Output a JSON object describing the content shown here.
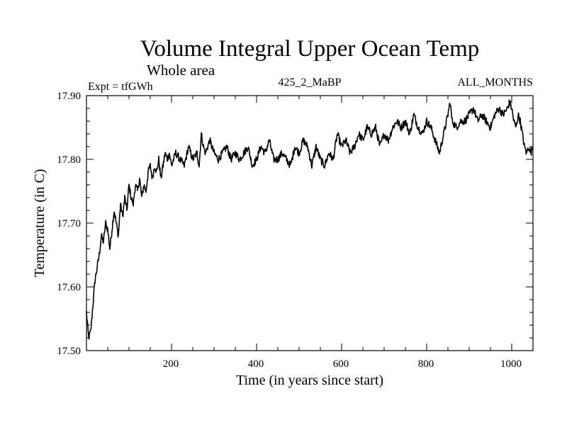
{
  "chart_data": {
    "type": "line",
    "title": "Volume Integral Upper Ocean Temp",
    "subtitle": "Whole area",
    "expt_label": "Expt = tfGWh",
    "run_label": "425_2_MaBP",
    "months_label": "ALL_MONTHS",
    "xlabel": "Time (in years since start)",
    "ylabel": "Temperature (in C)",
    "xlim": [
      0,
      1050
    ],
    "ylim": [
      17.5,
      17.9
    ],
    "xticks": [
      200,
      400,
      600,
      800,
      1000
    ],
    "xtick_labels": [
      "200",
      "400",
      "600",
      "800",
      "1000"
    ],
    "yticks": [
      17.5,
      17.6,
      17.7,
      17.8,
      17.9
    ],
    "ytick_labels": [
      "17.50",
      "17.60",
      "17.70",
      "17.80",
      "17.90"
    ],
    "colors": {
      "line": "#000000",
      "axis": "#000000",
      "background": "#ffffff"
    },
    "series": [
      {
        "name": "Volume Integral Upper Ocean Temp",
        "x": [
          0,
          5,
          10,
          15,
          20,
          25,
          30,
          35,
          40,
          45,
          50,
          55,
          60,
          65,
          70,
          75,
          80,
          85,
          90,
          95,
          100,
          105,
          110,
          115,
          120,
          125,
          130,
          135,
          140,
          145,
          150,
          155,
          160,
          165,
          170,
          175,
          180,
          185,
          190,
          195,
          200,
          210,
          220,
          230,
          240,
          250,
          260,
          265,
          270,
          275,
          280,
          290,
          300,
          310,
          320,
          330,
          340,
          350,
          360,
          370,
          380,
          390,
          400,
          410,
          420,
          430,
          440,
          450,
          460,
          470,
          480,
          490,
          500,
          510,
          520,
          530,
          540,
          550,
          560,
          570,
          580,
          590,
          600,
          610,
          620,
          630,
          640,
          650,
          660,
          670,
          680,
          690,
          700,
          710,
          720,
          730,
          740,
          750,
          760,
          770,
          780,
          790,
          800,
          810,
          820,
          830,
          840,
          850,
          855,
          860,
          870,
          880,
          890,
          900,
          910,
          920,
          930,
          940,
          950,
          960,
          970,
          980,
          990,
          995,
          1000,
          1005,
          1010,
          1015,
          1020,
          1025,
          1030,
          1035,
          1040,
          1045,
          1050
        ],
        "values": [
          17.56,
          17.52,
          17.53,
          17.57,
          17.61,
          17.63,
          17.65,
          17.68,
          17.67,
          17.7,
          17.69,
          17.66,
          17.69,
          17.72,
          17.7,
          17.68,
          17.73,
          17.71,
          17.74,
          17.72,
          17.76,
          17.74,
          17.73,
          17.76,
          17.75,
          17.77,
          17.74,
          17.76,
          17.75,
          17.78,
          17.79,
          17.77,
          17.79,
          17.78,
          17.8,
          17.77,
          17.79,
          17.81,
          17.8,
          17.81,
          17.79,
          17.81,
          17.8,
          17.79,
          17.82,
          17.8,
          17.81,
          17.79,
          17.84,
          17.82,
          17.81,
          17.83,
          17.81,
          17.8,
          17.81,
          17.82,
          17.8,
          17.81,
          17.8,
          17.81,
          17.82,
          17.79,
          17.8,
          17.82,
          17.81,
          17.83,
          17.8,
          17.8,
          17.81,
          17.8,
          17.79,
          17.82,
          17.81,
          17.83,
          17.82,
          17.79,
          17.82,
          17.8,
          17.79,
          17.81,
          17.8,
          17.84,
          17.82,
          17.83,
          17.81,
          17.82,
          17.84,
          17.83,
          17.85,
          17.84,
          17.85,
          17.82,
          17.84,
          17.83,
          17.85,
          17.86,
          17.85,
          17.86,
          17.84,
          17.87,
          17.85,
          17.84,
          17.86,
          17.85,
          17.83,
          17.81,
          17.84,
          17.87,
          17.89,
          17.86,
          17.85,
          17.86,
          17.86,
          17.87,
          17.88,
          17.86,
          17.87,
          17.86,
          17.85,
          17.87,
          17.88,
          17.87,
          17.88,
          17.89,
          17.88,
          17.86,
          17.85,
          17.87,
          17.86,
          17.84,
          17.82,
          17.81,
          17.82,
          17.81,
          17.82
        ]
      }
    ]
  }
}
